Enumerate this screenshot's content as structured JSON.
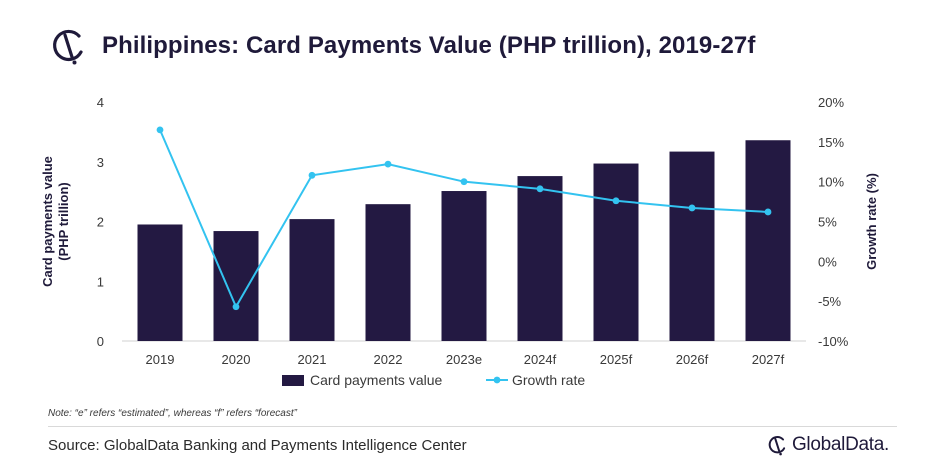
{
  "header": {
    "title": "Philippines: Card Payments Value (PHP trillion), 2019-27f",
    "logo_icon": "globaldata-mark-icon"
  },
  "chart_data": {
    "type": "bar",
    "categories": [
      "2019",
      "2020",
      "2021",
      "2022",
      "2023e",
      "2024f",
      "2025f",
      "2026f",
      "2027f"
    ],
    "series": [
      {
        "name": "Card payments value",
        "type": "bar",
        "axis": "left",
        "values": [
          1.95,
          1.84,
          2.04,
          2.29,
          2.51,
          2.76,
          2.97,
          3.17,
          3.36
        ]
      },
      {
        "name": "Growth rate",
        "type": "line",
        "axis": "right",
        "values": [
          16.5,
          -5.7,
          10.8,
          12.2,
          10.0,
          9.1,
          7.6,
          6.7,
          6.2
        ]
      }
    ],
    "ylabel_left_lines": [
      "Card payments value",
      "(PHP trillion)"
    ],
    "ylabel_right": "Growth rate (%)",
    "ylim_left": [
      0,
      4
    ],
    "ylim_right": [
      -10,
      20
    ],
    "left_ticks": [
      "0",
      "1",
      "2",
      "3",
      "4"
    ],
    "right_ticks": [
      "-10%",
      "-5%",
      "0%",
      "5%",
      "10%",
      "15%",
      "20%"
    ],
    "grid": false,
    "legend_position": "bottom",
    "colors": {
      "bar": "#231942",
      "line": "#33c3f0"
    }
  },
  "footer": {
    "note": "Note: “e” refers “estimated”, whereas “f” refers “forecast”",
    "source": "Source: GlobalData Banking and Payments Intelligence Center",
    "brand": "GlobalData.",
    "brand_icon": "globaldata-logo-icon"
  }
}
